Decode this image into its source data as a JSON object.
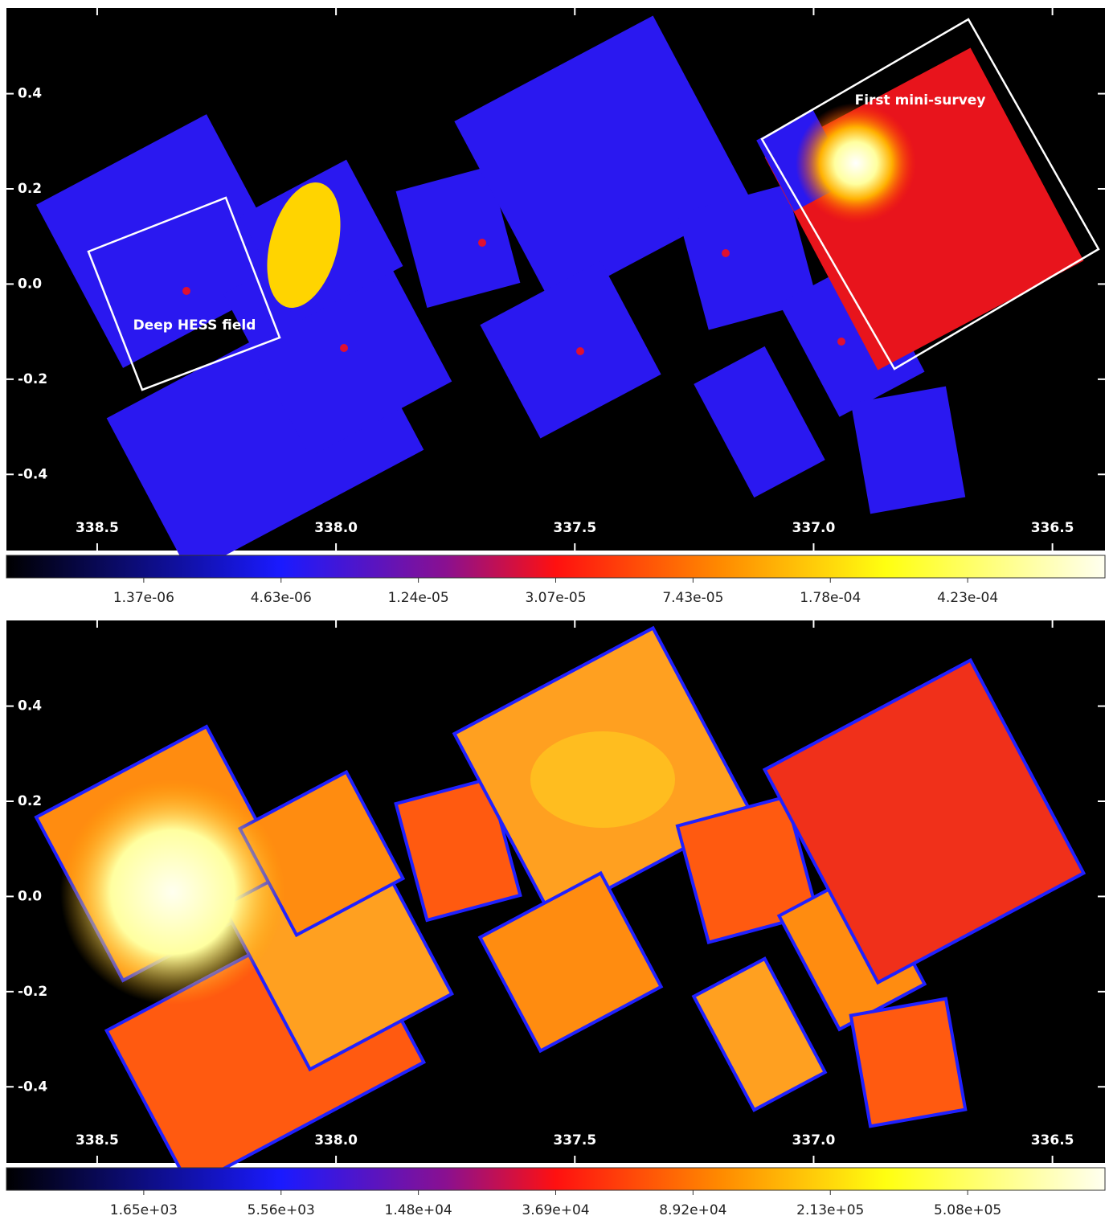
{
  "chart_data": [
    {
      "type": "image",
      "xlim": [
        338.69,
        336.39
      ],
      "ylim": [
        -0.56,
        0.58
      ],
      "xticks": [
        338.5,
        {
          "value": 338,
          "label": "338.0"
        },
        337.5,
        {
          "value": 337,
          "label": "337.0"
        },
        336.5
      ],
      "yticks": [
        0.4,
        0.2,
        {
          "value": 0,
          "label": "0.0"
        },
        -0.2,
        -0.4
      ],
      "annotations": [
        "Deep HESS field",
        "First mini-survey"
      ],
      "colorbar": {
        "ticks": [
          {
            "value": 1.37e-06,
            "label": "1.37e-06"
          },
          {
            "value": 4.63e-06,
            "label": "4.63e-06"
          },
          {
            "value": 1.24e-05,
            "label": "1.24e-05"
          },
          {
            "value": 3.07e-05,
            "label": "3.07e-05"
          },
          {
            "value": 7.43e-05,
            "label": "7.43e-05"
          },
          {
            "value": 0.000178,
            "label": "1.78e-04"
          },
          {
            "value": 0.000423,
            "label": "4.23e-04"
          }
        ]
      }
    },
    {
      "type": "image",
      "xlim": [
        338.69,
        336.39
      ],
      "ylim": [
        -0.56,
        0.58
      ],
      "xticks": [
        338.5,
        {
          "value": 338,
          "label": "338.0"
        },
        337.5,
        {
          "value": 337,
          "label": "337.0"
        },
        336.5
      ],
      "yticks": [
        0.4,
        0.2,
        {
          "value": 0,
          "label": "0.0"
        },
        -0.2,
        -0.4
      ],
      "colorbar": {
        "ticks": [
          {
            "value": 1650,
            "label": "1.65e+03"
          },
          {
            "value": 5560,
            "label": "5.56e+03"
          },
          {
            "value": 14800,
            "label": "1.48e+04"
          },
          {
            "value": 36900,
            "label": "3.69e+04"
          },
          {
            "value": 89200,
            "label": "8.92e+04"
          },
          {
            "value": 213000,
            "label": "2.13e+05"
          },
          {
            "value": 508000,
            "label": "5.08e+05"
          }
        ]
      }
    }
  ]
}
